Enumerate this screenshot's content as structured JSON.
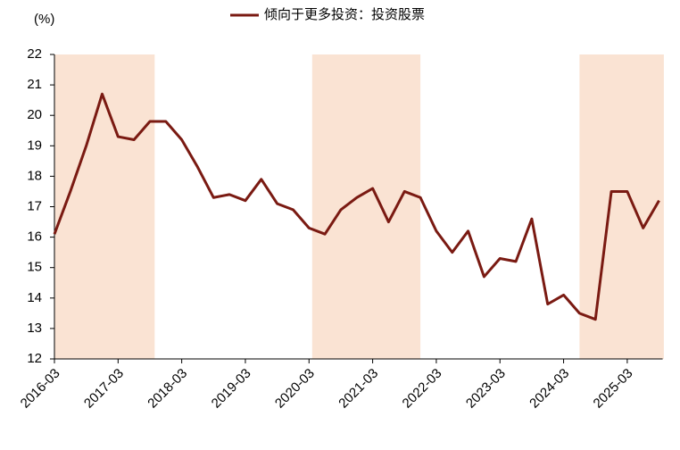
{
  "chart_data": {
    "type": "line",
    "legend_title": "倾向于更多投资：投资股票",
    "y_unit_label": "(%)",
    "categories": [
      "2016-03",
      null,
      null,
      null,
      "2017-03",
      null,
      null,
      null,
      "2018-03",
      null,
      null,
      null,
      "2019-03",
      null,
      null,
      null,
      "2020-03",
      null,
      null,
      null,
      "2021-03",
      null,
      null,
      null,
      "2022-03",
      null,
      null,
      null,
      "2023-03",
      null,
      null,
      null,
      "2024-03",
      null,
      null,
      null,
      "2025-03",
      null,
      null
    ],
    "series": [
      {
        "name": "倾向于更多投资：投资股票",
        "color": "#7a1a12",
        "values": [
          16.1,
          17.5,
          19.0,
          20.7,
          19.3,
          19.2,
          19.8,
          19.8,
          19.2,
          18.3,
          17.3,
          17.4,
          17.2,
          17.9,
          17.1,
          16.9,
          16.3,
          16.1,
          16.9,
          17.3,
          17.6,
          16.5,
          17.5,
          17.3,
          16.2,
          15.5,
          16.2,
          14.7,
          15.3,
          15.2,
          16.6,
          13.8,
          14.1,
          13.5,
          13.3,
          17.5,
          17.5,
          16.3,
          17.2
        ]
      }
    ],
    "shaded_spans": [
      [
        0,
        6.3
      ],
      [
        16.2,
        23
      ],
      [
        33,
        38.3
      ]
    ],
    "shade_color": "#fae3d3",
    "ylim": [
      12,
      22
    ],
    "yticks": [
      12,
      13,
      14,
      15,
      16,
      17,
      18,
      19,
      20,
      21,
      22
    ]
  }
}
